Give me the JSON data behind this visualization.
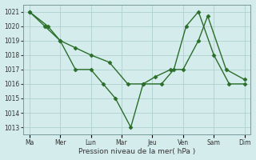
{
  "xlabel": "Pression niveau de la mer( hPa )",
  "xtick_labels": [
    "Ma",
    "Mer",
    "Lun",
    "Mar",
    "Jeu",
    "Ven",
    "Sam",
    "Dim"
  ],
  "xtick_positions": [
    0,
    1,
    2,
    3,
    4,
    5,
    6,
    7
  ],
  "ylim": [
    1012.5,
    1021.5
  ],
  "yticks": [
    1013,
    1014,
    1015,
    1016,
    1017,
    1018,
    1019,
    1020,
    1021
  ],
  "line1_x": [
    0,
    0.6,
    1.0,
    1.5,
    2.0,
    2.4,
    2.8,
    3.3,
    3.7,
    4.3,
    4.7,
    5.1,
    5.5,
    6.0,
    6.5,
    7.0
  ],
  "line1_y": [
    1021,
    1020,
    1019,
    1017,
    1017,
    1016,
    1015,
    1013,
    1016,
    1016,
    1017,
    1020,
    1021,
    1018,
    1016,
    1016
  ],
  "line2_x": [
    0,
    0.5,
    1.0,
    1.5,
    2.0,
    2.6,
    3.2,
    3.7,
    4.1,
    4.6,
    5.0,
    5.5,
    5.8,
    6.4,
    7.0
  ],
  "line2_y": [
    1021,
    1020,
    1019,
    1018.5,
    1018,
    1017.5,
    1016,
    1016,
    1016.5,
    1017,
    1017,
    1019,
    1020.7,
    1017,
    1016.3
  ],
  "line_color": "#2a6e2a",
  "bg_color": "#d4ecec",
  "grid_color": "#b0d0d0",
  "marker": "D",
  "marker_size": 2.5,
  "line_width": 1.0
}
